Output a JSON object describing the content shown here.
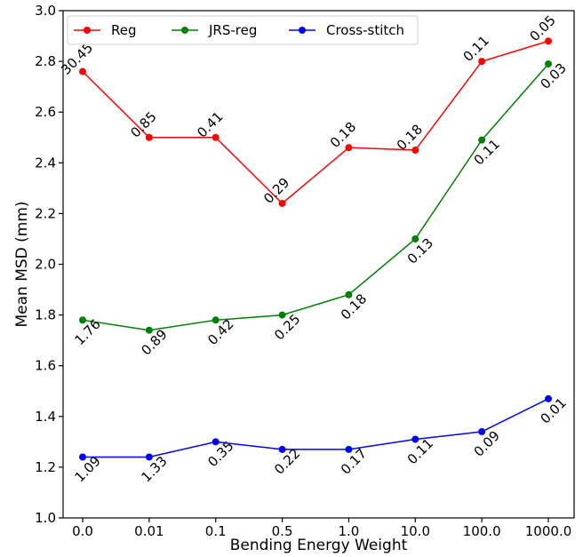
{
  "chart_data": {
    "type": "line",
    "title": "",
    "xlabel": "Bending Energy Weight",
    "ylabel": "Mean MSD (mm)",
    "categories": [
      "0.0",
      "0.01",
      "0.1",
      "0.5",
      "1.0",
      "10.0",
      "100.0",
      "1000.0"
    ],
    "ylim": [
      1.0,
      3.0
    ],
    "yticks": [
      "1.0",
      "1.2",
      "1.4",
      "1.6",
      "1.8",
      "2.0",
      "2.2",
      "2.4",
      "2.6",
      "2.8",
      "3.0"
    ],
    "grid": false,
    "legend_position": "top-left",
    "series": [
      {
        "name": "Reg",
        "color": "#ff0000",
        "values": [
          2.76,
          2.5,
          2.5,
          2.24,
          2.46,
          2.45,
          2.8,
          2.88
        ],
        "labels": [
          "30.45",
          "0.85",
          "0.41",
          "0.29",
          "0.18",
          "0.18",
          "0.11",
          "0.05"
        ],
        "label_side": "above"
      },
      {
        "name": "JRS-reg",
        "color": "#008000",
        "values": [
          1.78,
          1.74,
          1.78,
          1.8,
          1.88,
          2.1,
          2.49,
          2.79
        ],
        "labels": [
          "1.76",
          "0.89",
          "0.42",
          "0.25",
          "0.18",
          "0.13",
          "0.11",
          "0.03"
        ],
        "label_side": "below"
      },
      {
        "name": "Cross-stitch",
        "color": "#0000ff",
        "values": [
          1.24,
          1.24,
          1.3,
          1.27,
          1.27,
          1.31,
          1.34,
          1.47
        ],
        "labels": [
          "1.09",
          "1.33",
          "0.35",
          "0.22",
          "0.17",
          "0.11",
          "0.09",
          "0.01"
        ],
        "label_side": "below"
      }
    ]
  }
}
